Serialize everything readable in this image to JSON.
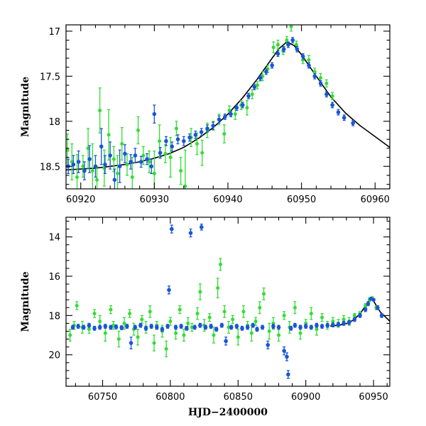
{
  "colors": {
    "green": "#33dd33",
    "blue": "#1a55d8",
    "model": "#000000"
  },
  "chart_data": [
    {
      "type": "scatter",
      "panel": "top",
      "title": "",
      "xlabel": "",
      "ylabel": "Magnitude",
      "xlim": [
        60918,
        60962
      ],
      "ylim": [
        18.75,
        16.93
      ],
      "xticks": [
        60920,
        60930,
        60940,
        60950,
        60960
      ],
      "xtick_labels": [
        "60920",
        "60930",
        "60940",
        "60950",
        "60960"
      ],
      "yticks": [
        17,
        17.5,
        18,
        18.5
      ],
      "ytick_labels": [
        "17",
        "17.5",
        "18",
        "18.5"
      ],
      "model_curve": {
        "name": "model",
        "x": [
          60918,
          60920,
          60922,
          60924,
          60926,
          60928,
          60930,
          60932,
          60934,
          60936,
          60938,
          60940,
          60942,
          60944,
          60946,
          60947,
          60948,
          60949,
          60950,
          60952,
          60954,
          60956,
          60958,
          60960,
          60962
        ],
        "y": [
          18.54,
          18.53,
          18.52,
          18.5,
          18.48,
          18.45,
          18.41,
          18.36,
          18.29,
          18.19,
          18.07,
          17.92,
          17.74,
          17.53,
          17.3,
          17.19,
          17.12,
          17.16,
          17.26,
          17.5,
          17.73,
          17.91,
          18.05,
          18.17,
          18.29
        ]
      },
      "series": [
        {
          "name": "green",
          "x": [
            60918.2,
            60918.8,
            60919.5,
            60920.3,
            60921.0,
            60921.6,
            60922.2,
            60922.6,
            60923.2,
            60923.8,
            60924.5,
            60925.0,
            60925.6,
            60926.3,
            60927.0,
            60927.8,
            60928.5,
            60929.3,
            60930.0,
            60930.7,
            60931.5,
            60932.2,
            60933.0,
            60933.6,
            60934.2,
            60935.0,
            60935.8,
            60936.5,
            60937.2,
            60938.0,
            60938.8,
            60939.5,
            60940.2,
            60941.0,
            60941.8,
            60942.6,
            60943.3,
            60944.0,
            60944.7,
            60945.4,
            60946.2,
            60946.8,
            60947.5,
            60948.0,
            60948.6,
            60949.3,
            60950.2,
            60951.0,
            60951.8,
            60952.6,
            60953.4,
            60954.2
          ],
          "y": [
            18.32,
            18.45,
            18.62,
            18.5,
            18.3,
            18.55,
            18.65,
            17.88,
            18.52,
            18.15,
            18.42,
            18.58,
            18.25,
            18.48,
            18.62,
            18.1,
            18.38,
            18.45,
            18.58,
            18.22,
            18.36,
            18.4,
            18.08,
            18.55,
            18.72,
            18.18,
            18.25,
            18.35,
            18.1,
            18.05,
            17.98,
            18.14,
            17.88,
            17.92,
            17.82,
            17.85,
            17.7,
            17.6,
            17.5,
            17.42,
            17.18,
            17.15,
            17.22,
            17.1,
            16.95,
            17.15,
            17.32,
            17.32,
            17.45,
            17.52,
            17.58,
            17.72
          ],
          "err": [
            0.18,
            0.2,
            0.25,
            0.12,
            0.22,
            0.3,
            0.15,
            0.25,
            0.2,
            0.28,
            0.14,
            0.2,
            0.18,
            0.12,
            0.22,
            0.15,
            0.1,
            0.12,
            0.25,
            0.18,
            0.1,
            0.22,
            0.08,
            0.15,
            0.4,
            0.1,
            0.12,
            0.14,
            0.08,
            0.05,
            0.06,
            0.1,
            0.05,
            0.06,
            0.05,
            0.08,
            0.05,
            0.04,
            0.05,
            0.04,
            0.06,
            0.05,
            0.04,
            0.04,
            0.05,
            0.04,
            0.04,
            0.05,
            0.04,
            0.05,
            0.04,
            0.04
          ]
        },
        {
          "name": "blue",
          "x": [
            60918.3,
            60919.0,
            60919.7,
            60920.5,
            60921.2,
            60922.0,
            60922.8,
            60923.3,
            60924.0,
            60924.6,
            60925.3,
            60926.0,
            60926.8,
            60927.4,
            60928.2,
            60929.0,
            60929.6,
            60930.0,
            60930.8,
            60931.6,
            60932.4,
            60933.2,
            60934.0,
            60934.8,
            60935.6,
            60936.4,
            60937.2,
            60938.0,
            60938.8,
            60939.6,
            60940.4,
            60941.2,
            60942.0,
            60942.8,
            60943.6,
            60944.4,
            60945.2,
            60946.0,
            60946.8,
            60947.6,
            60948.2,
            60948.8,
            60949.4,
            60950.2,
            60951.0,
            60951.8,
            60952.6,
            60953.4,
            60954.2,
            60955.0,
            60955.8,
            60957.0
          ],
          "y": [
            18.5,
            18.48,
            18.45,
            18.55,
            18.42,
            18.5,
            18.28,
            18.48,
            18.38,
            18.65,
            18.5,
            18.36,
            18.45,
            18.38,
            18.45,
            18.42,
            18.5,
            17.92,
            18.35,
            18.22,
            18.28,
            18.2,
            18.22,
            18.18,
            18.15,
            18.12,
            18.08,
            18.05,
            17.98,
            17.95,
            17.92,
            17.85,
            17.82,
            17.72,
            17.62,
            17.52,
            17.45,
            17.38,
            17.25,
            17.2,
            17.15,
            17.1,
            17.2,
            17.28,
            17.38,
            17.5,
            17.58,
            17.7,
            17.82,
            17.9,
            17.96,
            18.02
          ],
          "err": [
            0.08,
            0.1,
            0.12,
            0.1,
            0.15,
            0.12,
            0.2,
            0.1,
            0.15,
            0.12,
            0.18,
            0.1,
            0.08,
            0.08,
            0.06,
            0.06,
            0.08,
            0.1,
            0.06,
            0.05,
            0.05,
            0.05,
            0.05,
            0.04,
            0.04,
            0.04,
            0.04,
            0.04,
            0.04,
            0.03,
            0.03,
            0.03,
            0.03,
            0.03,
            0.03,
            0.03,
            0.03,
            0.03,
            0.03,
            0.03,
            0.03,
            0.03,
            0.03,
            0.03,
            0.03,
            0.03,
            0.03,
            0.03,
            0.03,
            0.03,
            0.03,
            0.03
          ]
        }
      ]
    },
    {
      "type": "scatter",
      "panel": "bottom",
      "title": "",
      "xlabel": "HJD−2400000",
      "ylabel": "Magnitude",
      "xlim": [
        60723,
        60962
      ],
      "ylim": [
        21.6,
        13.0
      ],
      "xticks": [
        60750,
        60800,
        60850,
        60900,
        60950
      ],
      "xtick_labels": [
        "60750",
        "60800",
        "60850",
        "60900",
        "60950"
      ],
      "yticks": [
        14,
        16,
        18,
        20
      ],
      "ytick_labels": [
        "14",
        "16",
        "18",
        "20"
      ],
      "model_curve": {
        "name": "model",
        "x": [
          60918,
          60925,
          60930,
          60935,
          60940,
          60945,
          60948,
          60950,
          60955,
          60962
        ],
        "y": [
          18.54,
          18.49,
          18.41,
          18.24,
          17.92,
          17.41,
          17.12,
          17.26,
          17.82,
          18.29
        ]
      },
      "series": [
        {
          "name": "green",
          "x": [
            60726,
            60729,
            60731,
            60735,
            60740,
            60744,
            60748,
            60752,
            60756,
            60758,
            60762,
            60766,
            60770,
            60773,
            60776,
            60779,
            60782,
            60785,
            60788,
            60790,
            60794,
            60797,
            60800,
            60804,
            60807,
            60810,
            60813,
            60816,
            60820,
            60822,
            60825,
            60829,
            60832,
            60835,
            60837,
            60840,
            60843,
            60846,
            60850,
            60854,
            60857,
            60860,
            60863,
            60866,
            60869,
            60873,
            60876,
            60880,
            60884,
            60888,
            60892,
            60896,
            60900,
            60904,
            60908,
            60912,
            60916,
            60920,
            60924,
            60928,
            60932,
            60936,
            60940,
            60944,
            60947,
            60949,
            60952
          ],
          "y": [
            19.0,
            18.5,
            17.5,
            18.6,
            18.7,
            17.9,
            18.3,
            18.9,
            17.7,
            18.5,
            19.2,
            18.4,
            17.9,
            18.7,
            19.1,
            18.2,
            18.6,
            17.8,
            19.4,
            18.5,
            18.8,
            19.7,
            18.3,
            18.9,
            17.7,
            19.0,
            18.4,
            18.6,
            17.9,
            16.8,
            18.5,
            18.1,
            19.0,
            16.6,
            15.4,
            17.8,
            18.6,
            18.2,
            19.1,
            17.8,
            18.5,
            18.9,
            18.3,
            17.6,
            16.9,
            18.8,
            18.4,
            19.0,
            18.0,
            18.6,
            17.6,
            18.9,
            18.4,
            17.9,
            18.7,
            18.1,
            18.5,
            18.3,
            18.4,
            18.2,
            18.3,
            18.0,
            17.9,
            17.5,
            17.2,
            17.1,
            17.6
          ],
          "err": [
            0.3,
            0.2,
            0.2,
            0.3,
            0.2,
            0.2,
            0.3,
            0.4,
            0.2,
            0.2,
            0.4,
            0.3,
            0.2,
            0.3,
            0.4,
            0.2,
            0.3,
            0.3,
            0.4,
            0.2,
            0.3,
            0.4,
            0.2,
            0.3,
            0.2,
            0.3,
            0.3,
            0.2,
            0.3,
            0.4,
            0.3,
            0.2,
            0.4,
            0.5,
            0.3,
            0.3,
            0.3,
            0.2,
            0.4,
            0.3,
            0.2,
            0.4,
            0.2,
            0.3,
            0.3,
            0.4,
            0.3,
            0.3,
            0.2,
            0.3,
            0.3,
            0.3,
            0.2,
            0.3,
            0.3,
            0.2,
            0.2,
            0.2,
            0.2,
            0.2,
            0.2,
            0.1,
            0.1,
            0.1,
            0.1,
            0.05,
            0.1
          ]
        },
        {
          "name": "blue",
          "x": [
            60728,
            60732,
            60736,
            60740,
            60744,
            60748,
            60752,
            60756,
            60760,
            60764,
            60768,
            60771,
            60774,
            60778,
            60782,
            60786,
            60790,
            60794,
            60798,
            60799,
            60801,
            60804,
            60808,
            60812,
            60815,
            60818,
            60822,
            60823,
            60826,
            60830,
            60834,
            60838,
            60841,
            60845,
            60849,
            60853,
            60857,
            60861,
            60864,
            60868,
            60872,
            60876,
            60880,
            60884,
            60886,
            60887,
            60889,
            60892,
            60896,
            60900,
            60904,
            60908,
            60912,
            60916,
            60920,
            60924,
            60928,
            60932,
            60936,
            60940,
            60944,
            60946,
            60948,
            60950,
            60953,
            60956
          ],
          "y": [
            18.6,
            18.55,
            18.6,
            18.5,
            18.65,
            18.6,
            18.55,
            18.6,
            18.58,
            18.62,
            18.55,
            19.4,
            18.6,
            18.5,
            18.65,
            18.55,
            18.6,
            18.7,
            18.55,
            16.7,
            13.6,
            18.6,
            18.55,
            18.65,
            13.8,
            18.6,
            18.5,
            13.5,
            18.6,
            18.55,
            18.7,
            18.5,
            19.3,
            18.6,
            18.55,
            18.65,
            18.6,
            18.5,
            18.7,
            18.6,
            19.5,
            18.55,
            18.6,
            19.8,
            20.1,
            21.0,
            18.65,
            18.5,
            18.6,
            18.55,
            18.6,
            18.5,
            18.55,
            18.5,
            18.48,
            18.45,
            18.4,
            18.35,
            18.2,
            18.0,
            17.7,
            17.4,
            17.15,
            17.2,
            17.6,
            18.0
          ],
          "err": [
            0.1,
            0.1,
            0.1,
            0.1,
            0.1,
            0.1,
            0.1,
            0.1,
            0.1,
            0.1,
            0.1,
            0.3,
            0.1,
            0.1,
            0.1,
            0.1,
            0.1,
            0.1,
            0.1,
            0.2,
            0.2,
            0.1,
            0.1,
            0.1,
            0.2,
            0.1,
            0.1,
            0.15,
            0.1,
            0.1,
            0.1,
            0.1,
            0.2,
            0.1,
            0.1,
            0.1,
            0.1,
            0.1,
            0.1,
            0.1,
            0.2,
            0.1,
            0.1,
            0.2,
            0.2,
            0.2,
            0.1,
            0.1,
            0.1,
            0.1,
            0.1,
            0.1,
            0.1,
            0.1,
            0.1,
            0.1,
            0.1,
            0.1,
            0.1,
            0.1,
            0.1,
            0.1,
            0.05,
            0.05,
            0.1,
            0.1
          ]
        }
      ]
    }
  ]
}
